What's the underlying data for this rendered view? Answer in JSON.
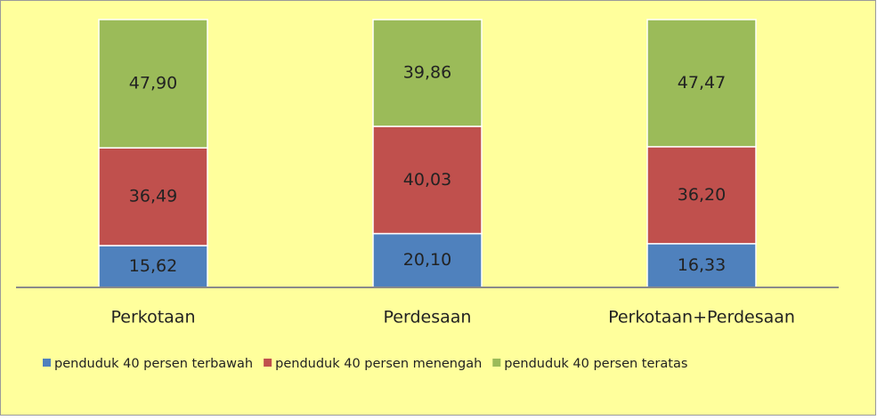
{
  "chart_data": {
    "type": "stacked_bar",
    "categories": [
      "Perkotaan",
      "Perdesaan",
      "Perkotaan+Perdesaan"
    ],
    "series": [
      {
        "name": "penduduk 40 persen terbawah",
        "color": "#4f81bd",
        "values": [
          15.62,
          20.1,
          16.33
        ],
        "value_labels": [
          "15,62",
          "20,10",
          "16,33"
        ]
      },
      {
        "name": "penduduk 40 persen menengah",
        "color": "#c0504d",
        "values": [
          36.49,
          40.03,
          36.2
        ],
        "value_labels": [
          "36,49",
          "40,03",
          "36,20"
        ]
      },
      {
        "name": "penduduk 40 persen teratas",
        "color": "#9bbb59",
        "values": [
          47.9,
          39.86,
          47.47
        ],
        "value_labels": [
          "47,90",
          "39,86",
          "47,47"
        ]
      }
    ],
    "ylim": [
      0,
      100
    ],
    "legend": "bottom"
  }
}
